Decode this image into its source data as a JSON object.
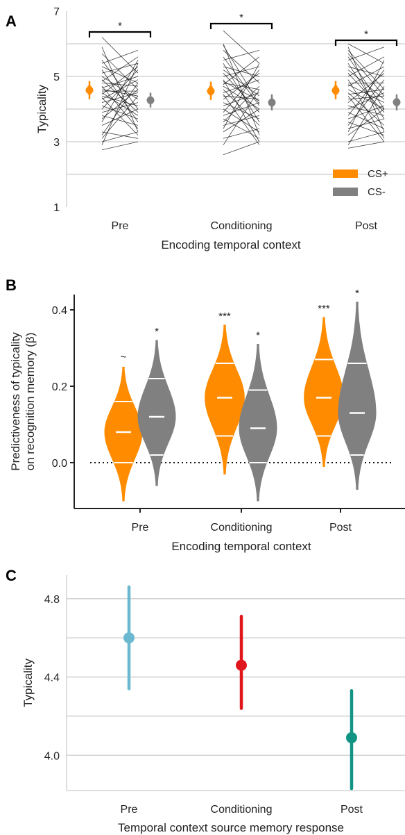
{
  "colors": {
    "cs_plus": "#ff8c00",
    "cs_minus": "#808080",
    "pre": "#6bb8d0",
    "conditioning": "#e0161d",
    "post": "#129484",
    "grid": "#cccccc",
    "axis": "#222222",
    "subject_lines": "#000000"
  },
  "chart_data": [
    {
      "panel": "A",
      "type": "line",
      "title": "",
      "xlabel": "Encoding temporal context",
      "ylabel": "Typicality",
      "ylim": [
        1,
        7
      ],
      "yticks": [
        "1",
        "3",
        "5",
        "7"
      ],
      "grid": "horizontal",
      "categories": [
        "Pre",
        "Conditioning",
        "Post"
      ],
      "legend": {
        "position": "bottom-right",
        "entries": [
          {
            "label": "CS+",
            "color_key": "cs_plus"
          },
          {
            "label": "CS-",
            "color_key": "cs_minus"
          }
        ]
      },
      "significance": [
        "*",
        "*",
        "*"
      ],
      "series": [
        {
          "name": "CS+",
          "means": [
            4.58,
            4.55,
            4.57
          ],
          "ci_low": [
            4.3,
            4.28,
            4.3
          ],
          "ci_high": [
            4.86,
            4.84,
            4.86
          ],
          "thick_low": [
            4.45,
            4.42,
            4.44
          ],
          "thick_high": [
            4.72,
            4.7,
            4.72
          ]
        },
        {
          "name": "CS-",
          "means": [
            4.27,
            4.2,
            4.21
          ],
          "ci_low": [
            4.05,
            3.96,
            3.96
          ],
          "ci_high": [
            4.5,
            4.45,
            4.45
          ],
          "thick_low": [
            4.16,
            4.08,
            4.09
          ],
          "thick_high": [
            4.38,
            4.32,
            4.33
          ]
        }
      ],
      "subject_lines": [
        [
          [
            6.2,
            5.1
          ],
          [
            5.9,
            3.3
          ],
          [
            5.7,
            4.6
          ],
          [
            5.5,
            4.0
          ],
          [
            5.4,
            5.8
          ],
          [
            5.3,
            4.8
          ],
          [
            5.2,
            3.6
          ],
          [
            5.1,
            5.4
          ],
          [
            5.0,
            4.3
          ],
          [
            4.9,
            3.9
          ],
          [
            4.85,
            5.6
          ],
          [
            4.8,
            4.7
          ],
          [
            4.7,
            3.4
          ],
          [
            4.65,
            5.0
          ],
          [
            4.6,
            4.4
          ],
          [
            4.5,
            3.8
          ],
          [
            4.45,
            5.3
          ],
          [
            4.4,
            4.1
          ],
          [
            4.35,
            3.2
          ],
          [
            4.3,
            4.9
          ],
          [
            4.2,
            4.5
          ],
          [
            4.1,
            3.7
          ],
          [
            4.0,
            5.2
          ],
          [
            3.9,
            4.2
          ],
          [
            3.8,
            3.5
          ],
          [
            3.7,
            4.6
          ],
          [
            3.6,
            5.5
          ],
          [
            3.5,
            4.0
          ],
          [
            3.3,
            3.1
          ],
          [
            3.1,
            4.4
          ],
          [
            3.0,
            3.3
          ],
          [
            2.9,
            5.4
          ],
          [
            2.75,
            3.0
          ],
          [
            3.2,
            4.8
          ],
          [
            4.55,
            4.55
          ]
        ],
        [
          [
            6.4,
            5.4
          ],
          [
            6.0,
            3.2
          ],
          [
            5.8,
            4.8
          ],
          [
            5.6,
            4.1
          ],
          [
            5.5,
            5.8
          ],
          [
            5.4,
            3.6
          ],
          [
            5.3,
            5.0
          ],
          [
            5.2,
            4.4
          ],
          [
            5.1,
            3.9
          ],
          [
            5.0,
            5.3
          ],
          [
            4.9,
            3.0
          ],
          [
            4.8,
            4.6
          ],
          [
            4.75,
            5.6
          ],
          [
            4.7,
            4.0
          ],
          [
            4.6,
            3.5
          ],
          [
            4.5,
            4.9
          ],
          [
            4.45,
            2.9
          ],
          [
            4.4,
            4.3
          ],
          [
            4.3,
            5.1
          ],
          [
            4.2,
            3.7
          ],
          [
            4.1,
            4.5
          ],
          [
            4.0,
            3.3
          ],
          [
            3.9,
            5.2
          ],
          [
            3.8,
            4.2
          ],
          [
            3.7,
            3.1
          ],
          [
            3.6,
            4.7
          ],
          [
            3.5,
            3.8
          ],
          [
            3.4,
            5.4
          ],
          [
            3.3,
            4.0
          ],
          [
            3.1,
            3.4
          ],
          [
            2.9,
            4.6
          ],
          [
            2.6,
            3.0
          ],
          [
            4.85,
            4.25
          ],
          [
            5.95,
            4.15
          ]
        ],
        [
          [
            6.0,
            5.4
          ],
          [
            5.9,
            3.3
          ],
          [
            5.8,
            4.6
          ],
          [
            5.6,
            4.0
          ],
          [
            5.5,
            5.9
          ],
          [
            5.4,
            3.7
          ],
          [
            5.3,
            5.0
          ],
          [
            5.2,
            4.3
          ],
          [
            5.1,
            3.9
          ],
          [
            5.0,
            5.6
          ],
          [
            4.9,
            3.1
          ],
          [
            4.8,
            4.8
          ],
          [
            4.7,
            5.3
          ],
          [
            4.6,
            4.0
          ],
          [
            4.5,
            3.5
          ],
          [
            4.45,
            4.6
          ],
          [
            4.4,
            3.0
          ],
          [
            4.3,
            4.4
          ],
          [
            4.2,
            5.1
          ],
          [
            4.1,
            3.8
          ],
          [
            4.0,
            4.5
          ],
          [
            3.9,
            3.4
          ],
          [
            3.8,
            5.2
          ],
          [
            3.7,
            4.1
          ],
          [
            3.6,
            3.2
          ],
          [
            3.5,
            4.9
          ],
          [
            3.4,
            3.7
          ],
          [
            3.3,
            5.5
          ],
          [
            3.2,
            4.0
          ],
          [
            3.0,
            3.3
          ],
          [
            2.9,
            4.7
          ],
          [
            2.8,
            3.0
          ],
          [
            4.75,
            4.2
          ],
          [
            5.7,
            4.4
          ]
        ]
      ]
    },
    {
      "panel": "B",
      "type": "violin",
      "title": "",
      "xlabel": "Encoding temporal context",
      "ylabel_lines": [
        "Predictiveness of typicality",
        "on recognition memory (β)"
      ],
      "ylim": [
        -0.12,
        0.44
      ],
      "yticks": [
        "0.0",
        "0.2",
        "0.4"
      ],
      "reference_line": 0.0,
      "categories": [
        "Pre",
        "Conditioning",
        "Post"
      ],
      "violins": [
        {
          "category": "Pre",
          "series": "CS+",
          "min": -0.1,
          "max": 0.25,
          "lower": 0.0,
          "median": 0.08,
          "upper": 0.16,
          "mode": 0.08,
          "halfwidth": 1.0,
          "sig": "~"
        },
        {
          "category": "Pre",
          "series": "CS-",
          "min": -0.06,
          "max": 0.32,
          "lower": 0.02,
          "median": 0.12,
          "upper": 0.22,
          "mode": 0.12,
          "halfwidth": 1.0,
          "sig": "*"
        },
        {
          "category": "Conditioning",
          "series": "CS+",
          "min": -0.03,
          "max": 0.36,
          "lower": 0.07,
          "median": 0.17,
          "upper": 0.26,
          "mode": 0.17,
          "halfwidth": 1.05,
          "sig": "***"
        },
        {
          "category": "Conditioning",
          "series": "CS-",
          "min": -0.1,
          "max": 0.31,
          "lower": 0.0,
          "median": 0.09,
          "upper": 0.19,
          "mode": 0.09,
          "halfwidth": 1.0,
          "sig": "*"
        },
        {
          "category": "Post",
          "series": "CS+",
          "min": -0.01,
          "max": 0.38,
          "lower": 0.07,
          "median": 0.17,
          "upper": 0.27,
          "mode": 0.17,
          "halfwidth": 1.05,
          "sig": "***"
        },
        {
          "category": "Post",
          "series": "CS-",
          "min": -0.07,
          "max": 0.42,
          "lower": 0.02,
          "median": 0.13,
          "upper": 0.26,
          "mode": 0.13,
          "halfwidth": 1.0,
          "sig": "*"
        }
      ]
    },
    {
      "panel": "C",
      "type": "scatter",
      "title": "",
      "xlabel": "Temporal context source memory response",
      "ylabel": "Typicality",
      "ylim": [
        3.82,
        4.92
      ],
      "yticks": [
        "4.0",
        "4.4",
        "4.8"
      ],
      "grid": "horizontal",
      "categories": [
        "Pre",
        "Conditioning",
        "Post"
      ],
      "points": [
        {
          "category": "Pre",
          "mean": 4.6,
          "ci": [
            4.34,
            4.86
          ],
          "color_key": "pre"
        },
        {
          "category": "Conditioning",
          "mean": 4.46,
          "ci": [
            4.24,
            4.71
          ],
          "color_key": "conditioning"
        },
        {
          "category": "Post",
          "mean": 4.09,
          "ci": [
            3.83,
            4.33
          ],
          "color_key": "post"
        }
      ]
    }
  ]
}
